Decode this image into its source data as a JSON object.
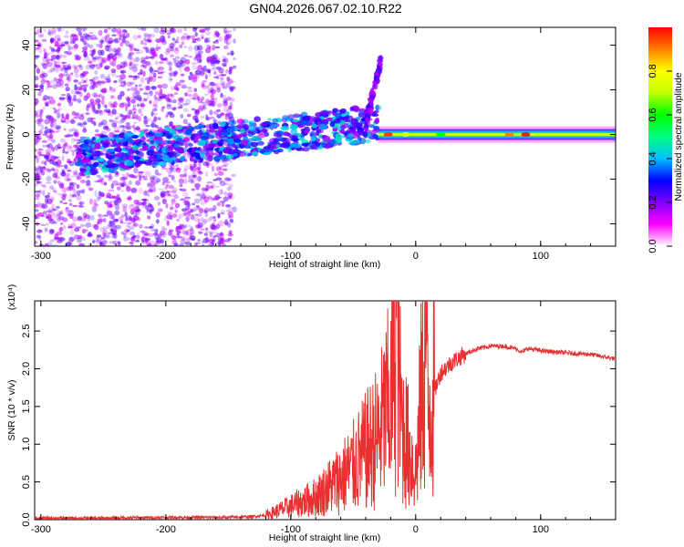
{
  "figure": {
    "title": "GN04.2026.067.02.10.R22"
  },
  "chart_data": [
    {
      "type": "heatmap",
      "name": "spectrogram",
      "title": "GN04.2026.067.02.10.R22",
      "xlabel": "Height of straight line (km)",
      "ylabel": "Frequency (Hz)",
      "xlim": [
        -305,
        160
      ],
      "ylim": [
        -50,
        48
      ],
      "xticks": [
        -300,
        -200,
        -100,
        0,
        100
      ],
      "yticks": [
        -40,
        -20,
        0,
        20,
        40
      ],
      "colorbar": {
        "label": "Normalized spectral amplitude",
        "range": [
          0,
          1
        ],
        "ticks": [
          0.0,
          0.2,
          0.4,
          0.6,
          0.8
        ],
        "tick_labels": [
          "0.0",
          "0.2",
          "0.4",
          "0.6",
          "0.8"
        ],
        "colors": [
          "#ffffff",
          "#ff00ff",
          "#8000ff",
          "#0000ff",
          "#00c0ff",
          "#00ff80",
          "#00ff00",
          "#c0ff00",
          "#ffff00",
          "#ff8000",
          "#ff0000"
        ]
      },
      "regions": [
        {
          "name": "diffuse noise",
          "x": [
            -305,
            -145
          ],
          "freq": [
            -50,
            48
          ],
          "amplitude": 0.1
        },
        {
          "name": "main trace",
          "x": [
            -270,
            -30
          ],
          "freq_start": -10,
          "freq_end": 5,
          "amplitude": 0.35
        },
        {
          "name": "upward branch",
          "x": [
            -40,
            -28
          ],
          "freq_start": 5,
          "freq_end": 33,
          "amplitude": 0.2
        },
        {
          "name": "stable carrier",
          "x": [
            -30,
            160
          ],
          "freq": 0,
          "amplitude": 0.8
        }
      ]
    },
    {
      "type": "line",
      "name": "snr",
      "xlabel": "Height of straight line (km)",
      "ylabel": "SNR (10 * v/v)",
      "y_scale_label": "(x10⁴)",
      "xlim": [
        -305,
        160
      ],
      "ylim": [
        0.0,
        2.9
      ],
      "xticks": [
        -300,
        -200,
        -100,
        0,
        100
      ],
      "yticks": [
        0.0,
        0.5,
        1.0,
        1.5,
        2.0,
        2.5
      ],
      "ytick_labels": [
        "0.0",
        "0.5",
        "1.0",
        "1.5",
        "2.0",
        "2.5"
      ],
      "color": "#e83030",
      "series": [
        {
          "name": "SNR",
          "x": [
            -305,
            -250,
            -200,
            -150,
            -130,
            -120,
            -100,
            -80,
            -60,
            -50,
            -40,
            -30,
            -20,
            -15,
            -12,
            -10,
            -5,
            0,
            5,
            8,
            10,
            15,
            20,
            30,
            40,
            50,
            60,
            70,
            80,
            85,
            90,
            100,
            120,
            140,
            160
          ],
          "y": [
            0.02,
            0.02,
            0.03,
            0.03,
            0.04,
            0.06,
            0.18,
            0.3,
            0.55,
            0.7,
            0.9,
            1.1,
            1.6,
            2.9,
            1.4,
            1.2,
            0.9,
            0.6,
            1.7,
            2.6,
            1.5,
            1.7,
            1.95,
            2.1,
            2.2,
            2.27,
            2.3,
            2.3,
            2.27,
            2.22,
            2.27,
            2.24,
            2.21,
            2.19,
            2.13
          ]
        }
      ]
    }
  ]
}
